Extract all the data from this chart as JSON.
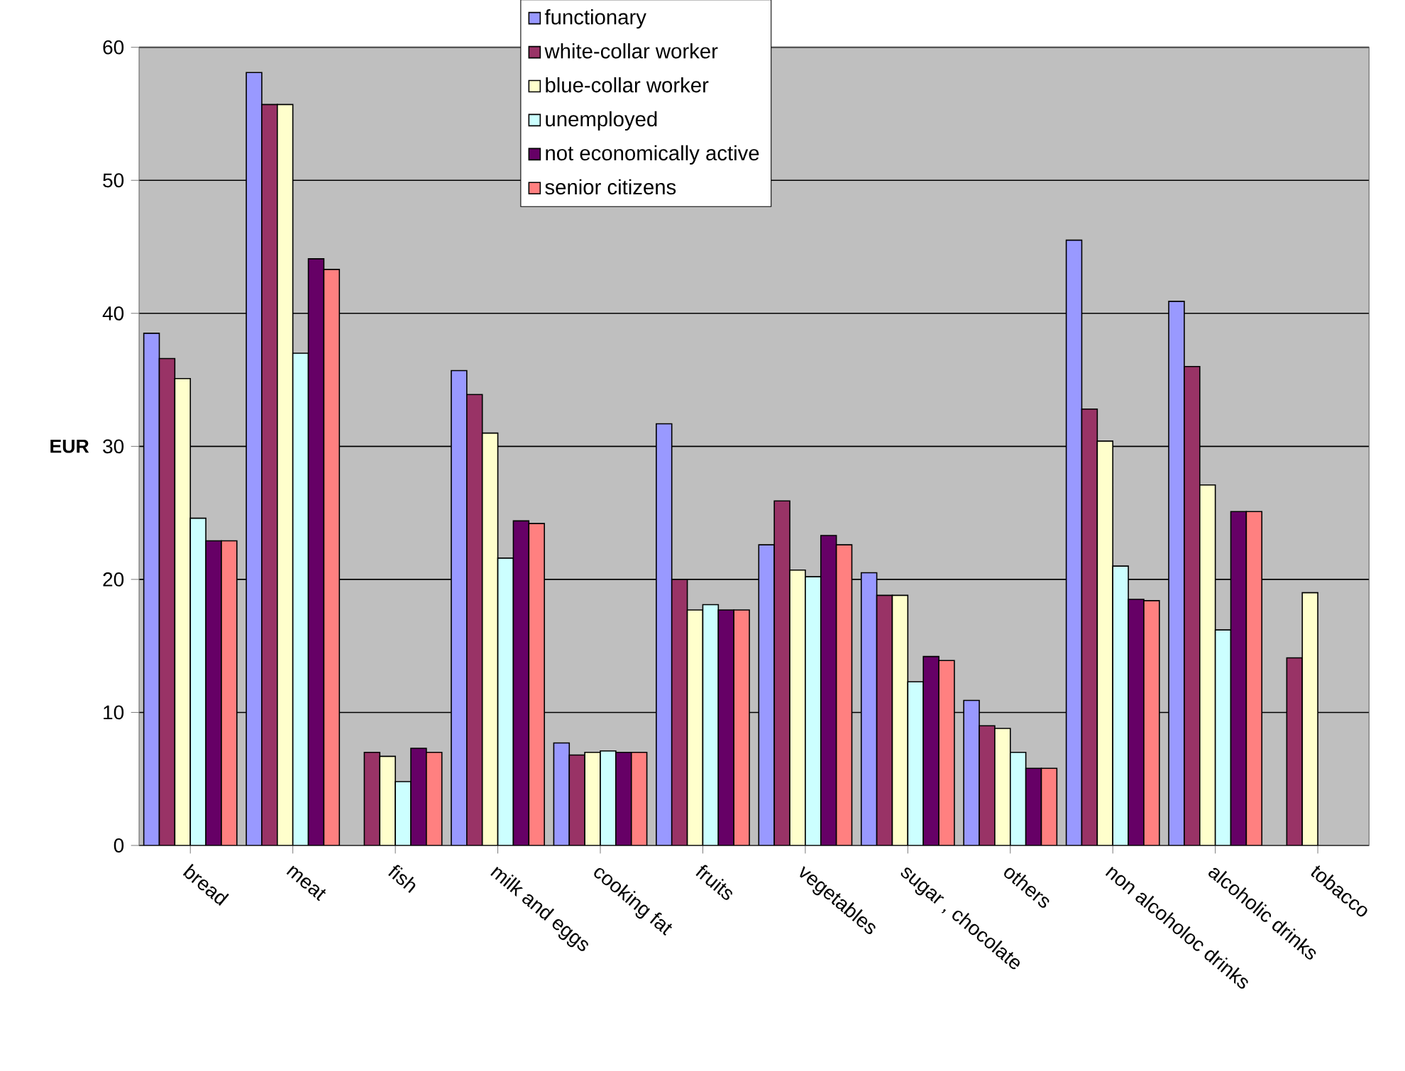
{
  "chart_data": {
    "type": "bar",
    "ylabel": "EUR",
    "categories": [
      "bread",
      "meat",
      "fish",
      "milk and eggs",
      "cooking fat",
      "fruits",
      "vegetables",
      "sugar , chocolate",
      "others",
      "non alcoholoc drinks",
      "alcoholic drinks",
      "tobacco"
    ],
    "series": [
      {
        "name": "functionary",
        "color": "#9999ff",
        "values": [
          38.5,
          58.1,
          null,
          35.7,
          7.7,
          31.7,
          22.6,
          20.5,
          10.9,
          45.5,
          40.9,
          null
        ]
      },
      {
        "name": "white-collar worker",
        "color": "#993366",
        "values": [
          36.6,
          55.7,
          7.0,
          33.9,
          6.8,
          20.0,
          25.9,
          18.8,
          9.0,
          32.8,
          36.0,
          14.1
        ]
      },
      {
        "name": "blue-collar worker",
        "color": "#ffffcc",
        "values": [
          35.1,
          55.7,
          6.7,
          31.0,
          7.0,
          17.7,
          20.7,
          18.8,
          8.8,
          30.4,
          27.1,
          19.0
        ]
      },
      {
        "name": "unemployed",
        "color": "#ccffff",
        "values": [
          24.6,
          37.0,
          4.8,
          21.6,
          7.1,
          18.1,
          20.2,
          12.3,
          7.0,
          21.0,
          16.2,
          null
        ]
      },
      {
        "name": "not economically active",
        "color": "#660066",
        "values": [
          22.9,
          44.1,
          7.3,
          24.4,
          7.0,
          17.7,
          23.3,
          14.2,
          5.8,
          18.5,
          25.1,
          null
        ]
      },
      {
        "name": "senior citizens",
        "color": "#ff8080",
        "values": [
          22.9,
          43.3,
          7.0,
          24.2,
          7.0,
          17.7,
          22.6,
          13.9,
          5.8,
          18.4,
          25.1,
          null
        ]
      }
    ],
    "ylim": [
      0,
      60
    ],
    "yticks": [
      0,
      10,
      20,
      30,
      40,
      50,
      60
    ],
    "grid": "y",
    "legend": "top"
  }
}
